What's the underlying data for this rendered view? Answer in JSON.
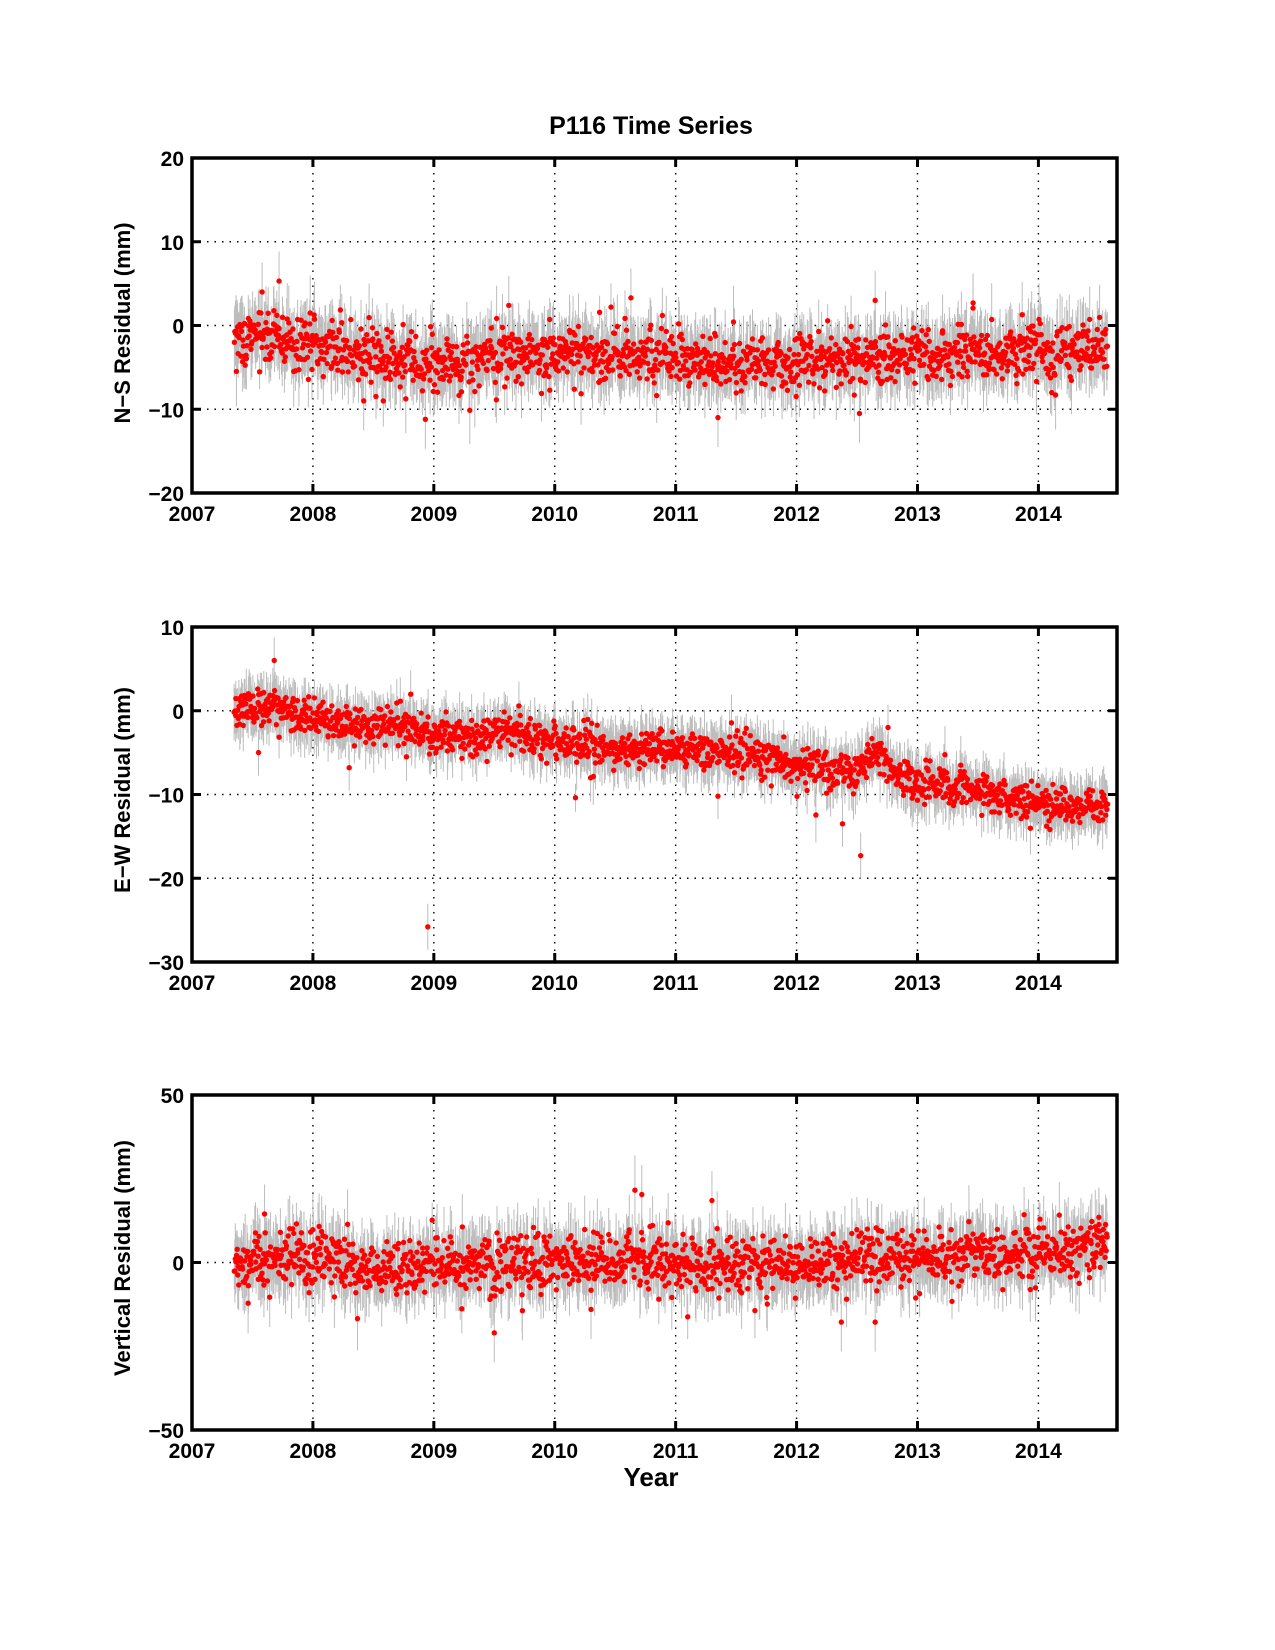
{
  "title": "P116 Time Series",
  "colors": {
    "points": "#ff0000",
    "error_bars": "#bdbdbd",
    "axes": "#000000",
    "grid": "#000000"
  },
  "chart_data": [
    {
      "type": "scatter",
      "name": "N-S",
      "ylabel": "N−S Residual (mm)",
      "xlabel": "",
      "xlim": [
        2007,
        2014.65
      ],
      "ylim": [
        -20,
        20
      ],
      "xticks": [
        2007,
        2008,
        2009,
        2010,
        2011,
        2012,
        2013,
        2014
      ],
      "xtick_labels": [
        "2007",
        "2008",
        "2009",
        "2010",
        "2011",
        "2012",
        "2013",
        "2014"
      ],
      "yticks": [
        -20,
        -10,
        0,
        10,
        20
      ],
      "ytick_labels": [
        "−20",
        "−10",
        "0",
        "10",
        "20"
      ],
      "grid": true,
      "error_bars": true,
      "points_per_year": 220,
      "x_range": [
        2007.35,
        2014.57
      ],
      "trend": [
        [
          2007.35,
          -2.0
        ],
        [
          2007.6,
          -0.5
        ],
        [
          2007.8,
          -2.0
        ],
        [
          2008.5,
          -3.5
        ],
        [
          2009.0,
          -4.5
        ],
        [
          2009.6,
          -3.5
        ],
        [
          2010.0,
          -3.0
        ],
        [
          2010.5,
          -3.5
        ],
        [
          2011.0,
          -4.0
        ],
        [
          2011.5,
          -4.5
        ],
        [
          2012.0,
          -4.5
        ],
        [
          2012.5,
          -4.0
        ],
        [
          2013.0,
          -3.5
        ],
        [
          2013.5,
          -3.5
        ],
        [
          2014.0,
          -3.0
        ],
        [
          2014.57,
          -3.0
        ]
      ],
      "scatter_sd": 1.6,
      "error_bar_half": 3.2,
      "outliers": [
        [
          2007.72,
          5.3
        ],
        [
          2007.58,
          4.0
        ],
        [
          2008.93,
          -11.2
        ],
        [
          2009.62,
          2.4
        ],
        [
          2010.63,
          3.3
        ],
        [
          2011.35,
          -11.0
        ],
        [
          2012.52,
          -10.5
        ],
        [
          2012.65,
          3.0
        ],
        [
          2013.46,
          2.7
        ],
        [
          2008.42,
          -9.0
        ]
      ]
    },
    {
      "type": "scatter",
      "name": "E-W",
      "ylabel": "E−W Residual (mm)",
      "xlabel": "",
      "xlim": [
        2007,
        2014.65
      ],
      "ylim": [
        -30,
        10
      ],
      "xticks": [
        2007,
        2008,
        2009,
        2010,
        2011,
        2012,
        2013,
        2014
      ],
      "xtick_labels": [
        "2007",
        "2008",
        "2009",
        "2010",
        "2011",
        "2012",
        "2013",
        "2014"
      ],
      "yticks": [
        -30,
        -20,
        -10,
        0,
        10
      ],
      "ytick_labels": [
        "−30",
        "−20",
        "−10",
        "0",
        "10"
      ],
      "grid": true,
      "error_bars": true,
      "points_per_year": 220,
      "x_range": [
        2007.35,
        2014.57
      ],
      "trend": [
        [
          2007.35,
          0.0
        ],
        [
          2007.7,
          0.5
        ],
        [
          2008.0,
          -1.0
        ],
        [
          2008.3,
          -2.0
        ],
        [
          2008.6,
          -1.5
        ],
        [
          2009.0,
          -3.0
        ],
        [
          2009.5,
          -2.8
        ],
        [
          2009.7,
          -2.0
        ],
        [
          2009.8,
          -3.5
        ],
        [
          2010.5,
          -4.5
        ],
        [
          2011.0,
          -4.8
        ],
        [
          2011.5,
          -5.0
        ],
        [
          2011.8,
          -5.5
        ],
        [
          2012.0,
          -6.5
        ],
        [
          2012.5,
          -7.5
        ],
        [
          2012.65,
          -4.5
        ],
        [
          2012.8,
          -7.5
        ],
        [
          2013.0,
          -8.5
        ],
        [
          2013.5,
          -9.5
        ],
        [
          2014.0,
          -11.0
        ],
        [
          2014.57,
          -11.5
        ]
      ],
      "scatter_sd": 1.1,
      "error_bar_half": 2.5,
      "outliers": [
        [
          2007.68,
          6.0
        ],
        [
          2008.95,
          -25.8
        ],
        [
          2012.53,
          -17.3
        ],
        [
          2012.38,
          -13.5
        ],
        [
          2011.35,
          -10.2
        ],
        [
          2008.3,
          -6.8
        ],
        [
          2007.55,
          -5.0
        ]
      ]
    },
    {
      "type": "scatter",
      "name": "Vertical",
      "ylabel": "Vertical Residual (mm)",
      "xlabel": "Year",
      "xlim": [
        2007,
        2014.65
      ],
      "ylim": [
        -50,
        50
      ],
      "xticks": [
        2007,
        2008,
        2009,
        2010,
        2011,
        2012,
        2013,
        2014
      ],
      "xtick_labels": [
        "2007",
        "2008",
        "2009",
        "2010",
        "2011",
        "2012",
        "2013",
        "2014"
      ],
      "yticks": [
        -50,
        0,
        50
      ],
      "ytick_labels": [
        "−50",
        "0",
        "50"
      ],
      "grid": true,
      "error_bars": true,
      "points_per_year": 220,
      "x_range": [
        2007.35,
        2014.57
      ],
      "trend": [
        [
          2007.35,
          0.0
        ],
        [
          2007.7,
          2.0
        ],
        [
          2008.0,
          1.5
        ],
        [
          2008.5,
          -1.5
        ],
        [
          2009.0,
          -1.0
        ],
        [
          2009.5,
          -1.0
        ],
        [
          2010.0,
          0.5
        ],
        [
          2010.5,
          0.5
        ],
        [
          2010.8,
          1.5
        ],
        [
          2011.0,
          -1.0
        ],
        [
          2011.5,
          -1.5
        ],
        [
          2012.0,
          -1.0
        ],
        [
          2012.5,
          1.0
        ],
        [
          2013.0,
          2.0
        ],
        [
          2013.5,
          2.0
        ],
        [
          2014.0,
          3.5
        ],
        [
          2014.57,
          6.0
        ]
      ],
      "scatter_sd": 4.2,
      "error_bar_half": 8.0,
      "outliers": [
        [
          2010.72,
          20.3
        ],
        [
          2011.3,
          18.5
        ],
        [
          2012.37,
          -17.8
        ],
        [
          2012.65,
          -17.8
        ],
        [
          2009.5,
          -21.0
        ],
        [
          2010.3,
          -14.0
        ],
        [
          2007.6,
          14.5
        ],
        [
          2014.5,
          13.5
        ]
      ]
    }
  ]
}
